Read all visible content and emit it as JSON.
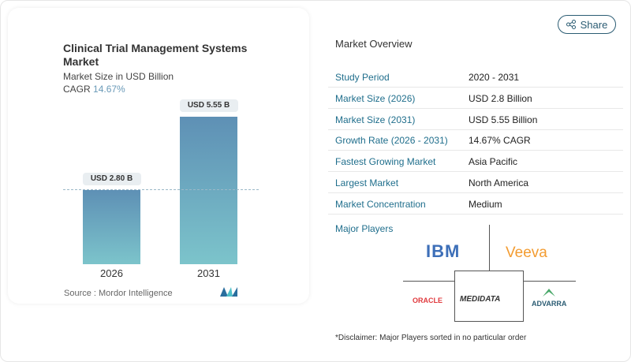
{
  "header": {
    "share_label": "Share",
    "share_icon": "share-icon"
  },
  "chart": {
    "title": "Clinical Trial Management Systems Market",
    "subtitle": "Market Size in USD Billion",
    "cagr_label": "CAGR",
    "cagr_value": "14.67%",
    "source": "Source :  Mordor Intelligence"
  },
  "chart_data": {
    "type": "bar",
    "categories": [
      "2026",
      "2031"
    ],
    "values": [
      2.8,
      5.55
    ],
    "data_labels": [
      "USD 2.80 B",
      "USD 5.55 B"
    ],
    "title": "Clinical Trial Management Systems Market",
    "ylabel": "Market Size in USD Billion",
    "ylim": [
      0,
      5.9
    ],
    "colors": {
      "bar_top": "#5e90b5",
      "bar_bottom": "#7cc4cb"
    }
  },
  "overview": {
    "title": "Market Overview",
    "rows": [
      {
        "key": "Study Period",
        "value": "2020 - 2031"
      },
      {
        "key": "Market Size (2026)",
        "value": "USD 2.8 Billion"
      },
      {
        "key": "Market Size (2031)",
        "value": "USD 5.55 Billion"
      },
      {
        "key": "Growth Rate (2026 - 2031)",
        "value": "14.67% CAGR"
      },
      {
        "key": "Fastest Growing Market",
        "value": "Asia Pacific"
      },
      {
        "key": "Largest Market",
        "value": "North America"
      },
      {
        "key": "Market Concentration",
        "value": "Medium"
      }
    ]
  },
  "players": {
    "title": "Major Players",
    "logos": [
      "IBM",
      "Veeva",
      "ORACLE",
      "MEDIDATA",
      "ADVARRA"
    ]
  },
  "disclaimer": "*Disclaimer: Major Players sorted in no particular order"
}
